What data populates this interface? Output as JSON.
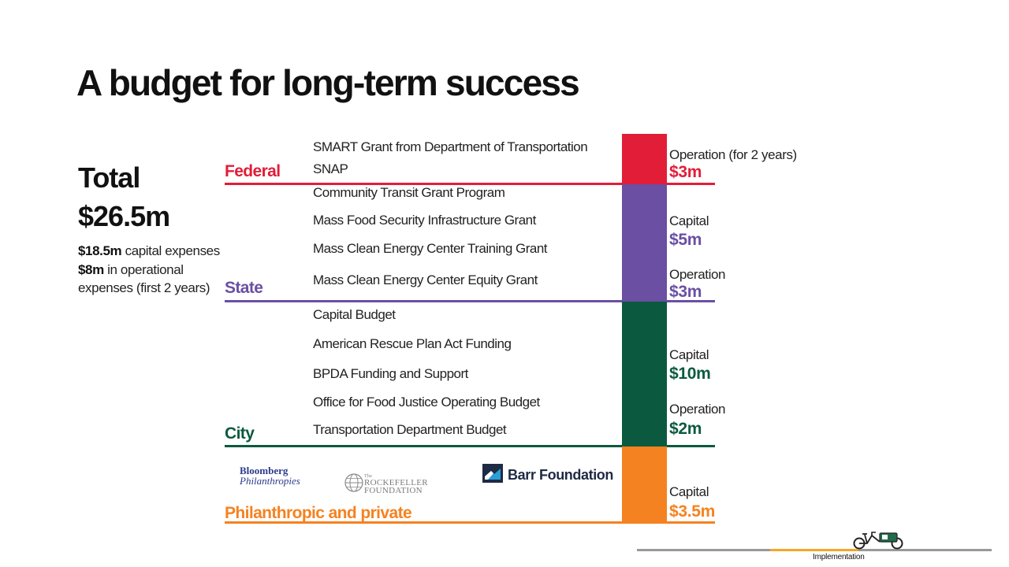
{
  "title": "A budget for long-term success",
  "total": {
    "label": "Total",
    "value": "$26.5m",
    "capital_amount": "$18.5m",
    "capital_text": " capital expenses",
    "operational_amount": "$8m",
    "operational_text": " in operational expenses (first 2 years)"
  },
  "colors": {
    "federal": "#e21d38",
    "state": "#6a4fa3",
    "city": "#0b5a3f",
    "philanthropic": "#f58220"
  },
  "sections": {
    "federal": {
      "label": "Federal",
      "sources": [
        "SMART Grant from Department of Transportation",
        "SNAP"
      ],
      "allocations": [
        {
          "label": "Operation (for 2 years)",
          "amount": "$3m"
        }
      ]
    },
    "state": {
      "label": "State",
      "sources": [
        "Community Transit Grant Program",
        "Mass Food Security  Infrastructure Grant",
        "Mass Clean Energy  Center Training Grant",
        "Mass Clean Energy Center Equity Grant"
      ],
      "allocations": [
        {
          "label": "Capital",
          "amount": "$5m"
        },
        {
          "label": "Operation",
          "amount": "$3m"
        }
      ]
    },
    "city": {
      "label": "City",
      "sources": [
        "Capital Budget",
        "American Rescue Plan Act Funding",
        "BPDA Funding and Support",
        "Office for Food Justice Operating Budget",
        "Transportation Department Budget"
      ],
      "allocations": [
        {
          "label": "Capital",
          "amount": "$10m"
        },
        {
          "label": "Operation",
          "amount": "$2m"
        }
      ]
    },
    "philanthropic": {
      "label": "Philanthropic and private",
      "logos": {
        "bloomberg_line1": "Bloomberg",
        "bloomberg_line2": "Philanthropies",
        "rockefeller_small": "The",
        "rockefeller_line1": "ROCKEFELLER",
        "rockefeller_line2": "FOUNDATION",
        "barr": "Barr Foundation"
      },
      "allocations": [
        {
          "label": "Capital",
          "amount": "$3.5m"
        }
      ]
    }
  },
  "footer": {
    "label": "Implementation",
    "progress": 0.5
  }
}
